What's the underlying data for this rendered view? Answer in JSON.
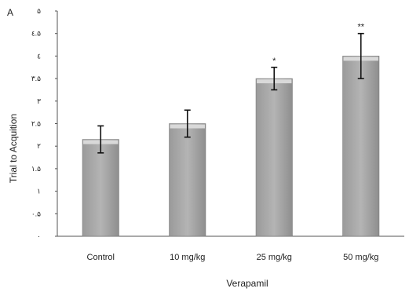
{
  "chart_data": {
    "type": "bar",
    "panel_label": "A",
    "xlabel": "Verapamil",
    "ylabel": "Trial to Acquition",
    "ylim": [
      0,
      5
    ],
    "y_ticks": [
      0,
      0.5,
      1,
      1.5,
      2,
      2.5,
      3,
      3.5,
      4,
      4.5,
      5
    ],
    "y_tick_labels": [
      "٠",
      "٠.۵",
      "١",
      "١.۵",
      "٢",
      "٢.۵",
      "٣",
      "٣.۵",
      "٤",
      "٤.۵",
      "۵"
    ],
    "grid": false,
    "categories": [
      "Control",
      "10 mg/kg",
      "25 mg/kg",
      "50 mg/kg"
    ],
    "values": [
      2.15,
      2.5,
      3.5,
      4.0
    ],
    "errors": [
      0.3,
      0.3,
      0.25,
      0.5
    ],
    "significance": [
      "",
      "",
      "*",
      "**"
    ],
    "bar_color": "#a6a6a6",
    "bar_highlight": "#d9d9d9"
  }
}
